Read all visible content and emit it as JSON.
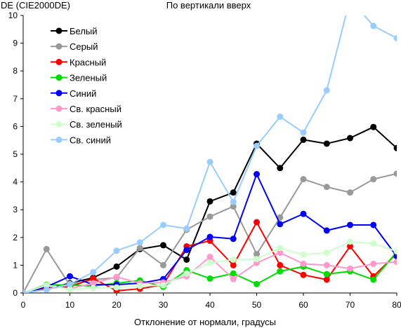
{
  "chart_data": {
    "type": "line",
    "title": "По вертикали вверх",
    "ylabel": "DE (CIE2000DE)",
    "xlabel": "Отклонение от нормали, градусы",
    "x": [
      0,
      5,
      10,
      15,
      20,
      25,
      30,
      35,
      40,
      45,
      50,
      55,
      60,
      65,
      70,
      75,
      80
    ],
    "xlim": [
      0,
      80
    ],
    "ylim": [
      0,
      10
    ],
    "xticks": [
      0,
      10,
      20,
      30,
      40,
      50,
      60,
      70,
      80
    ],
    "yticks": [
      0,
      1,
      2,
      3,
      4,
      5,
      6,
      7,
      8,
      9,
      10
    ],
    "grid": false,
    "legend_position": "top-left",
    "series": [
      {
        "name": "Белый",
        "color": "#000000",
        "values": [
          0,
          0.15,
          0.35,
          0.55,
          0.95,
          1.58,
          1.72,
          1.2,
          3.3,
          3.62,
          5.38,
          4.5,
          5.52,
          5.38,
          5.58,
          5.98,
          5.22
        ]
      },
      {
        "name": "Серый",
        "color": "#999999",
        "values": [
          0,
          1.58,
          0.28,
          0.48,
          0.55,
          1.62,
          1.0,
          2.28,
          2.75,
          3.12,
          1.4,
          2.72,
          4.1,
          3.82,
          3.62,
          4.1,
          4.3
        ]
      },
      {
        "name": "Красный",
        "color": "#ff0000",
        "values": [
          0,
          0.18,
          0.22,
          0.52,
          0.08,
          0.15,
          0.3,
          1.68,
          1.88,
          1.0,
          2.55,
          1.0,
          0.65,
          0.48,
          1.68,
          0.6,
          1.42
        ]
      },
      {
        "name": "Зеленый",
        "color": "#00dd00",
        "values": [
          0,
          0.3,
          0.28,
          0.25,
          0.35,
          0.45,
          0.22,
          0.82,
          0.52,
          0.7,
          0.32,
          0.78,
          0.95,
          0.68,
          0.78,
          0.48,
          1.48
        ]
      },
      {
        "name": "Синий",
        "color": "#0000ff",
        "values": [
          0,
          0.22,
          0.6,
          0.3,
          0.3,
          0.35,
          0.5,
          1.55,
          2.02,
          1.95,
          4.28,
          2.48,
          2.85,
          2.25,
          2.45,
          2.45,
          1.32
        ]
      },
      {
        "name": "Св. красный",
        "color": "#ff99cc",
        "values": [
          0,
          0.28,
          0.15,
          0.35,
          0.58,
          0.35,
          0.38,
          0.6,
          1.3,
          0.5,
          1.08,
          1.45,
          1.05,
          1.0,
          0.88,
          1.05,
          1.12
        ]
      },
      {
        "name": "Св. зеленый",
        "color": "#ccffcc",
        "values": [
          0,
          0.28,
          0.12,
          0.18,
          0.2,
          0.25,
          0.28,
          0.7,
          1.08,
          1.2,
          1.22,
          1.62,
          1.38,
          1.45,
          1.85,
          1.78,
          1.5
        ]
      },
      {
        "name": "Св. синий",
        "color": "#99ccff",
        "values": [
          0,
          0.12,
          0.32,
          0.75,
          1.52,
          1.82,
          2.45,
          2.32,
          4.72,
          3.28,
          5.3,
          6.35,
          5.78,
          7.3,
          10.6,
          9.62,
          9.18
        ]
      }
    ]
  }
}
